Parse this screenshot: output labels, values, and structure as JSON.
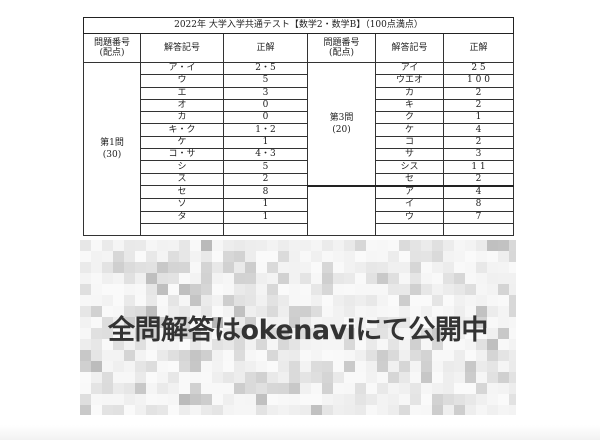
{
  "table": {
    "title": "2022年 大学入学共通テスト【数学2・数学B】（100点満点）",
    "headers": [
      "問題番号\n(配点)",
      "解答記号",
      "正解",
      "問題番号\n(配点)",
      "解答記号",
      "正解"
    ],
    "left_group": {
      "label": "第1問",
      "points": "(30)"
    },
    "left_rows": [
      [
        "ア・イ",
        "2・5"
      ],
      [
        "ウ",
        "5"
      ],
      [
        "エ",
        "3"
      ],
      [
        "オ",
        "0"
      ],
      [
        "カ",
        "0"
      ],
      [
        "キ・ク",
        "1・2"
      ],
      [
        "ケ",
        "1"
      ],
      [
        "コ・サ",
        "4・3"
      ],
      [
        "シ",
        "5"
      ],
      [
        "ス",
        "2"
      ],
      [
        "セ",
        "8"
      ],
      [
        "ソ",
        "1"
      ],
      [
        "タ",
        "1"
      ],
      [
        "",
        ""
      ]
    ],
    "right_group_1": {
      "label": "第3問",
      "points": "(20)"
    },
    "right_rows": [
      [
        "アイ",
        "2 5"
      ],
      [
        "ウエオ",
        "1 0 0"
      ],
      [
        "カ",
        "2"
      ],
      [
        "キ",
        "2"
      ],
      [
        "ク",
        "1"
      ],
      [
        "ケ",
        "4"
      ],
      [
        "コ",
        "2"
      ],
      [
        "サ",
        "3"
      ],
      [
        "シス",
        "1 1"
      ],
      [
        "セ",
        "2"
      ],
      [
        "ア",
        "4"
      ],
      [
        "イ",
        "8"
      ],
      [
        "ウ",
        "7"
      ],
      [
        "",
        ""
      ]
    ]
  },
  "overlay": {
    "text": "全問解答はokenaviにて公開中"
  }
}
